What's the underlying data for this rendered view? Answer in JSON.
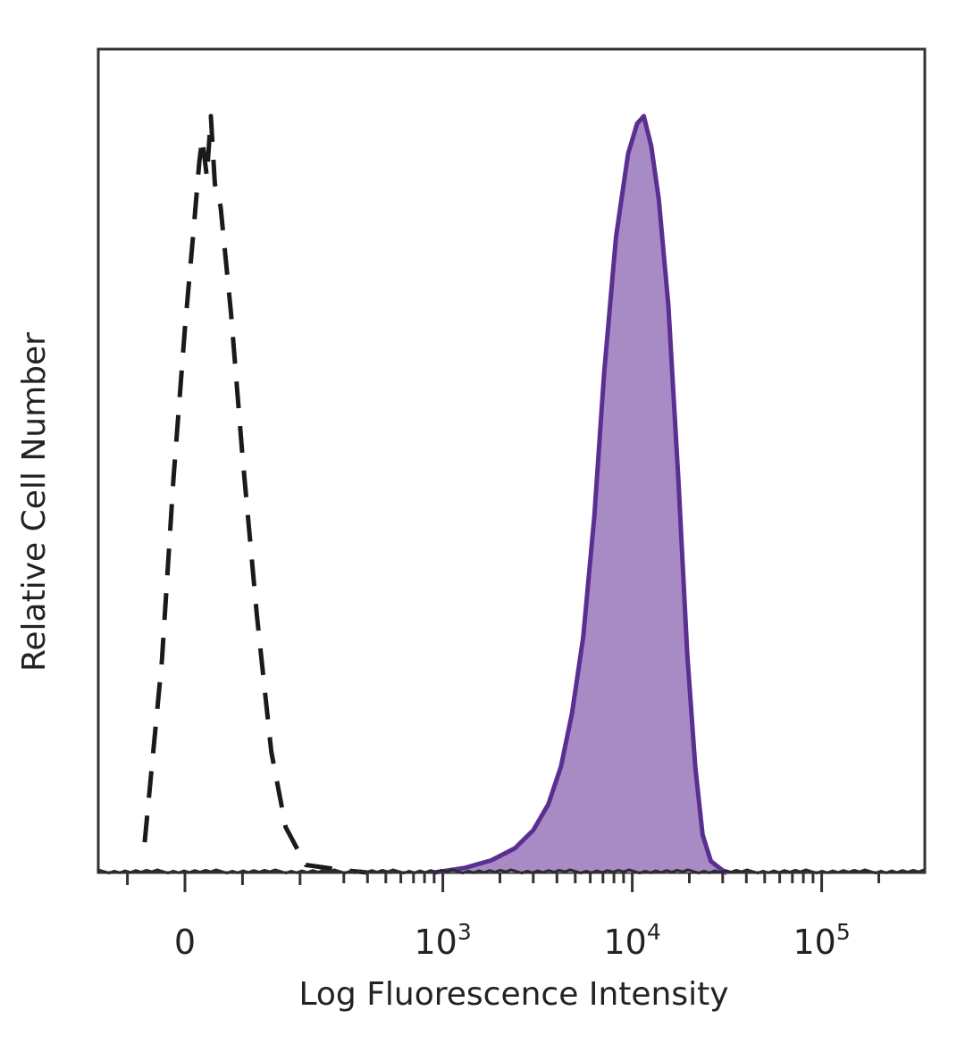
{
  "chart_data": {
    "type": "area",
    "xlabel": "Log Fluorescence Intensity",
    "ylabel": "Relative Cell Number",
    "x_scale": "biexponential (linear near 0, log10 above)",
    "x_ticks": [
      {
        "value": 0,
        "base": "0",
        "exp": ""
      },
      {
        "value": 1000,
        "base": "10",
        "exp": "3"
      },
      {
        "value": 10000,
        "base": "10",
        "exp": "4"
      },
      {
        "value": 100000,
        "base": "10",
        "exp": "5"
      }
    ],
    "xlim": [
      -180,
      250000
    ],
    "ylim": [
      0,
      100
    ],
    "grid": false,
    "legend": "none",
    "series": [
      {
        "style": "dashed",
        "color": "#1a1a1a",
        "fill": "none",
        "points": [
          [
            -70,
            4
          ],
          [
            -40,
            28
          ],
          [
            -20,
            52
          ],
          [
            0,
            72
          ],
          [
            15,
            85
          ],
          [
            25,
            94
          ],
          [
            30,
            97
          ],
          [
            38,
            92
          ],
          [
            45,
            100
          ],
          [
            52,
            91
          ],
          [
            62,
            88
          ],
          [
            80,
            74
          ],
          [
            100,
            55
          ],
          [
            125,
            34
          ],
          [
            150,
            16
          ],
          [
            175,
            6
          ],
          [
            210,
            1
          ],
          [
            300,
            0.3
          ],
          [
            400,
            0
          ]
        ]
      },
      {
        "style": "solid",
        "color": "#5b2e91",
        "fill": "#a88bc4",
        "points": [
          [
            900,
            0
          ],
          [
            1300,
            0.6
          ],
          [
            1800,
            1.6
          ],
          [
            2400,
            3.2
          ],
          [
            3000,
            5.6
          ],
          [
            3600,
            9
          ],
          [
            4200,
            14
          ],
          [
            4800,
            21
          ],
          [
            5500,
            31
          ],
          [
            6300,
            47
          ],
          [
            7100,
            66
          ],
          [
            8200,
            84
          ],
          [
            9500,
            95
          ],
          [
            10600,
            99
          ],
          [
            11500,
            100
          ],
          [
            12600,
            96
          ],
          [
            13800,
            89
          ],
          [
            15500,
            75
          ],
          [
            17500,
            52
          ],
          [
            19500,
            29
          ],
          [
            21500,
            14
          ],
          [
            23500,
            5
          ],
          [
            26000,
            1.5
          ],
          [
            31000,
            0
          ]
        ]
      }
    ]
  }
}
